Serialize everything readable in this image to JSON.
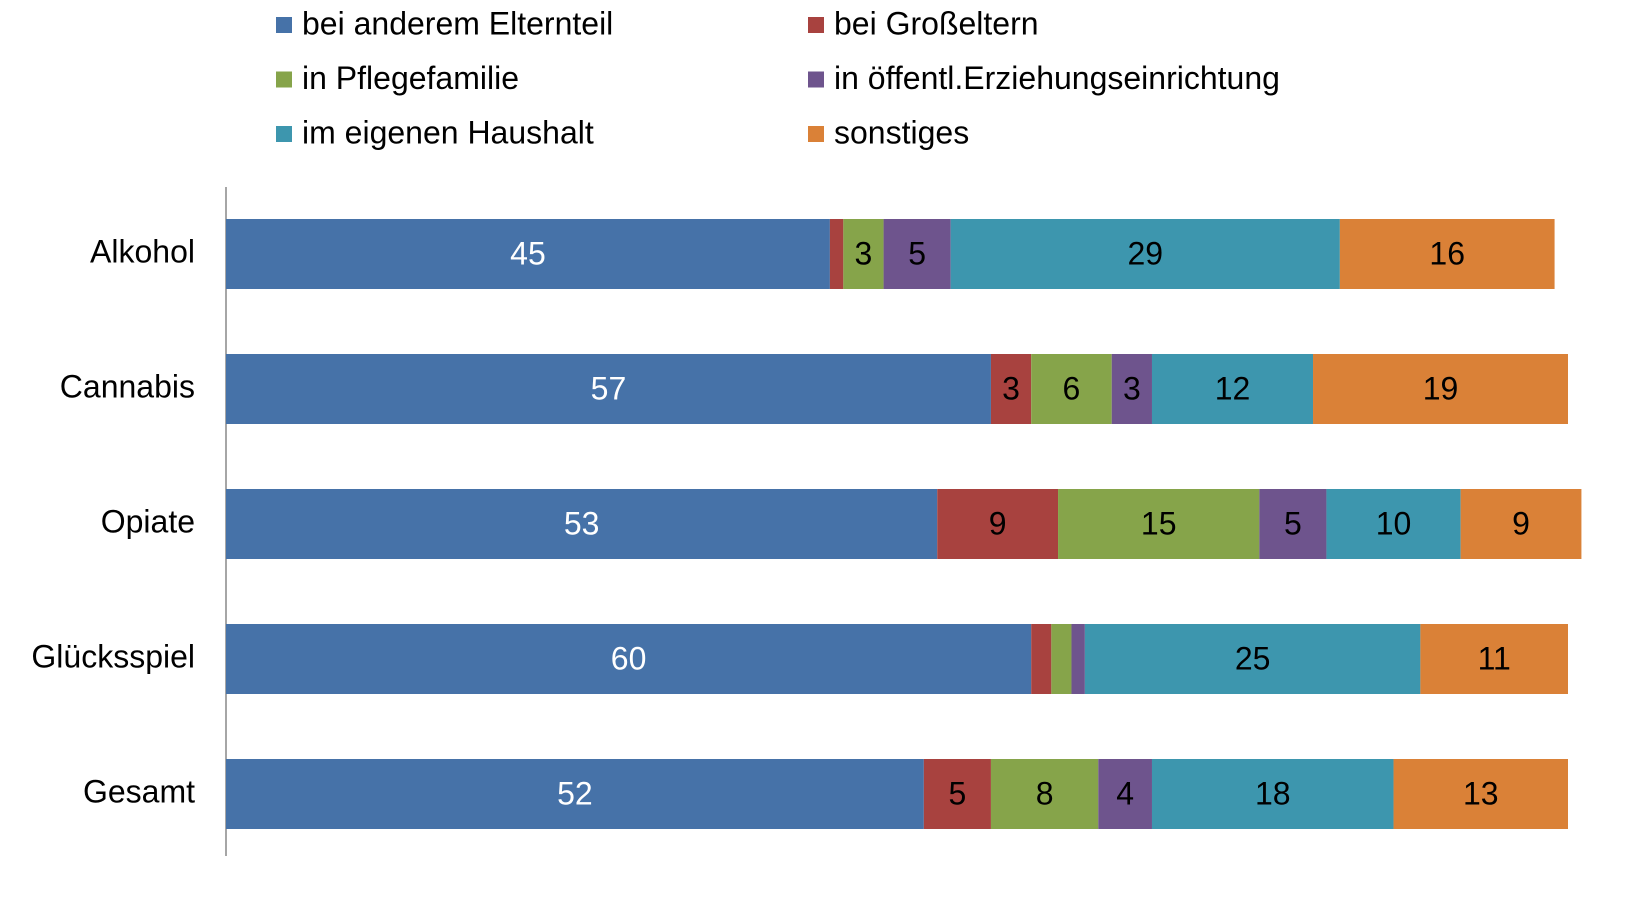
{
  "chart_data": {
    "type": "stacked-barh",
    "categories": [
      "Alkohol",
      "Cannabis",
      "Opiate",
      "Glücksspiel",
      "Gesamt"
    ],
    "xlim": [
      0,
      100
    ],
    "series": [
      {
        "name": "bei anderem Elternteil",
        "color": "#4672a8",
        "label_color": "#ffffff",
        "values": [
          45,
          57,
          53,
          60,
          52
        ],
        "value_labels": [
          "45",
          "57",
          "53",
          "60",
          "52"
        ]
      },
      {
        "name": "bei Großeltern",
        "color": "#a8423f",
        "label_color": "#000000",
        "values": [
          1,
          3,
          9,
          1.5,
          5
        ],
        "value_labels": [
          null,
          "3",
          "9",
          null,
          "5"
        ]
      },
      {
        "name": "in Pflegefamilie",
        "color": "#86a44a",
        "label_color": "#000000",
        "values": [
          3,
          6,
          15,
          1.5,
          8
        ],
        "value_labels": [
          "3",
          "6",
          "15",
          null,
          "8"
        ]
      },
      {
        "name": "in öffentl.Erziehungseinrichtung",
        "color": "#6e548d",
        "label_color": "#000000",
        "values": [
          5,
          3,
          5,
          1,
          4
        ],
        "value_labels": [
          "5",
          "3",
          "5",
          null,
          "4"
        ]
      },
      {
        "name": "im eigenen Haushalt",
        "color": "#3d96ae",
        "label_color": "#000000",
        "values": [
          29,
          12,
          10,
          25,
          18
        ],
        "value_labels": [
          "29",
          "12",
          "10",
          "25",
          "18"
        ]
      },
      {
        "name": "sonstiges",
        "color": "#da8137",
        "label_color": "#000000",
        "values": [
          16,
          19,
          9,
          11,
          13
        ],
        "value_labels": [
          "16",
          "19",
          "9",
          "11",
          "13"
        ]
      }
    ]
  }
}
